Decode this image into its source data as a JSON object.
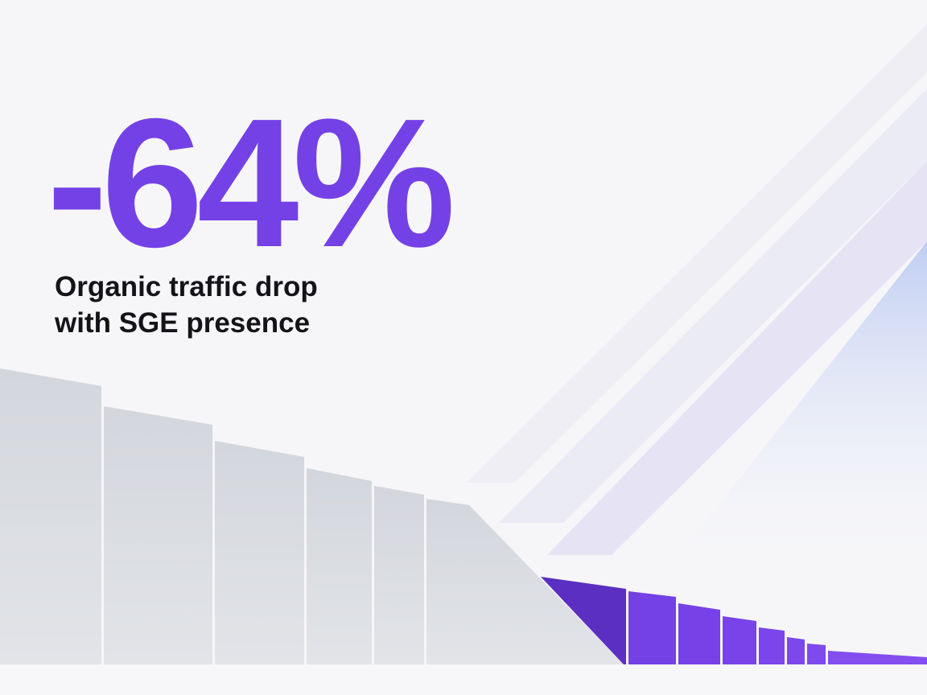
{
  "headline": "-64%",
  "subtitle_lines": [
    "Organic traffic drop",
    "with SGE presence"
  ]
}
